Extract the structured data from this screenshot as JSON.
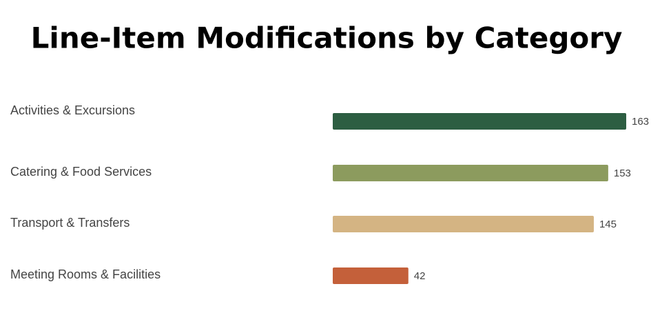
{
  "chart_data": {
    "type": "bar",
    "orientation": "horizontal",
    "title": "Line-Item Modifications by Category",
    "categories": [
      "Activities & Excursions",
      "Catering & Food Services",
      "Transport & Transfers",
      "Meeting Rooms & Facilities"
    ],
    "values": [
      163,
      153,
      145,
      42
    ],
    "colors": [
      "#2d5e42",
      "#8c9b5e",
      "#d4b483",
      "#c4603a"
    ]
  }
}
